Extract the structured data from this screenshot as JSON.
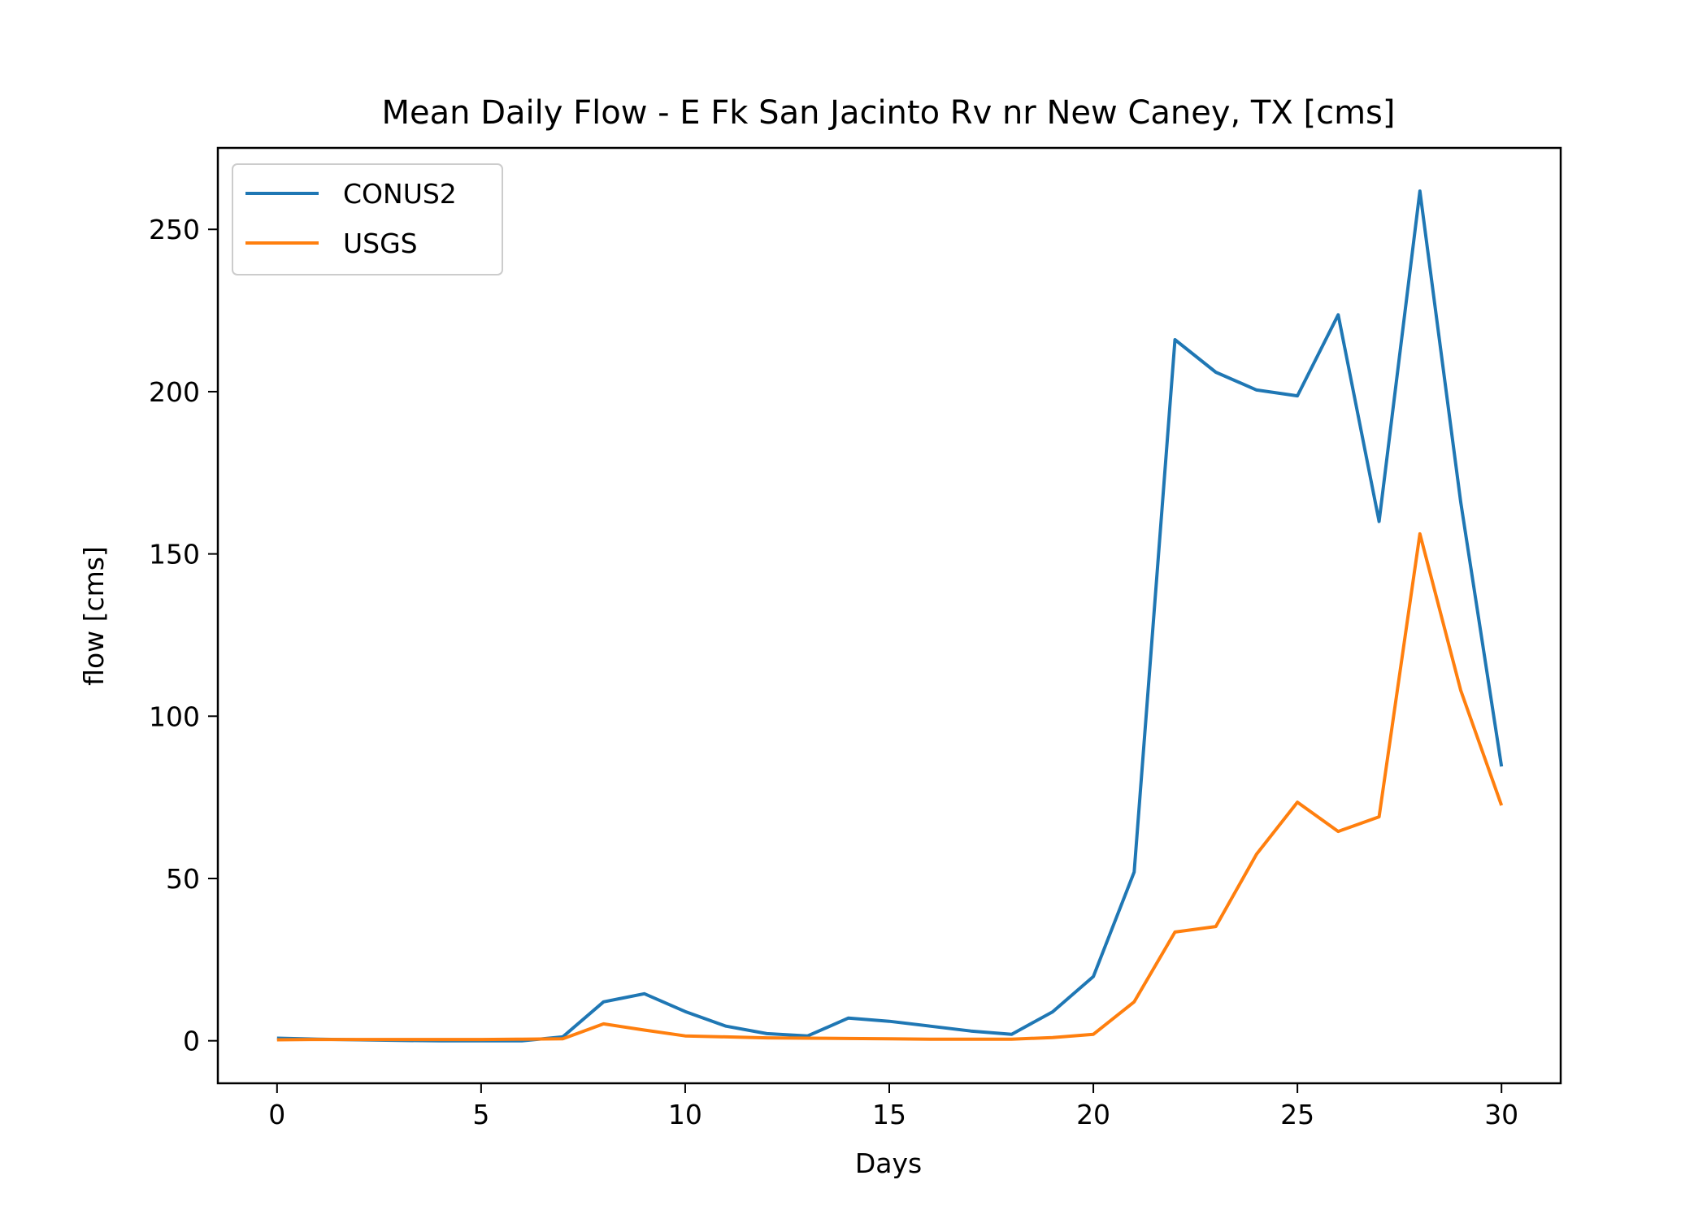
{
  "chart_data": {
    "type": "line",
    "title": "Mean Daily Flow - E Fk San Jacinto Rv nr New Caney, TX [cms]",
    "xlabel": "Days",
    "ylabel": "flow [cms]",
    "xlim": [
      -1.45,
      31.45
    ],
    "ylim": [
      -13.1,
      275.1
    ],
    "xticks": [
      0,
      5,
      10,
      15,
      20,
      25,
      30
    ],
    "yticks": [
      0,
      50,
      100,
      150,
      200,
      250
    ],
    "grid": false,
    "legend_position": "upper left",
    "x": [
      0,
      1,
      2,
      3,
      4,
      5,
      6,
      7,
      8,
      9,
      10,
      11,
      12,
      13,
      14,
      15,
      16,
      17,
      18,
      19,
      20,
      21,
      22,
      23,
      24,
      25,
      26,
      27,
      28,
      29,
      30
    ],
    "series": [
      {
        "name": "CONUS2",
        "color": "#1f77b4",
        "values": [
          0.8,
          0.5,
          0.3,
          0.1,
          0,
          0,
          0,
          1.2,
          12,
          14.5,
          9,
          4.5,
          2.2,
          1.5,
          7,
          6,
          4.5,
          3,
          2,
          8.9,
          19.8,
          52,
          216,
          206,
          200.5,
          198.7,
          223.7,
          160,
          261.8,
          166,
          84.5
        ]
      },
      {
        "name": "USGS",
        "color": "#ff7f0e",
        "values": [
          0.3,
          0.4,
          0.4,
          0.4,
          0.4,
          0.4,
          0.5,
          0.6,
          5.2,
          3.3,
          1.5,
          1.2,
          0.9,
          0.8,
          0.7,
          0.6,
          0.5,
          0.5,
          0.5,
          1,
          2,
          12,
          33.5,
          35.2,
          57.5,
          73.5,
          64.5,
          69,
          156.2,
          108,
          72.5
        ]
      }
    ]
  }
}
